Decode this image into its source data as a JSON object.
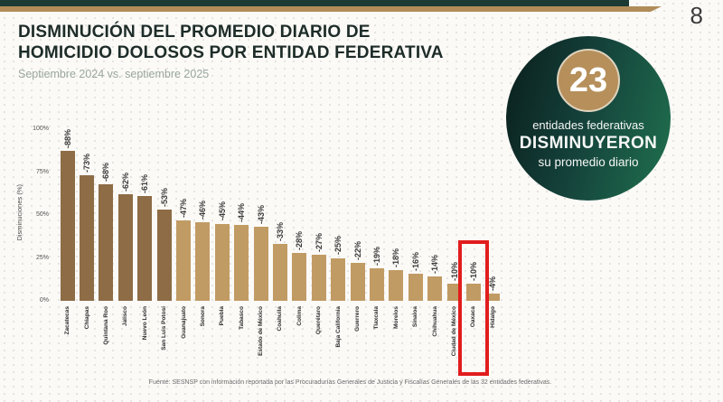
{
  "page": {
    "number": "8",
    "footer": "Fuente: SESNSP con información reportada por las Procuradurías Generales de Justicia y Fiscalías Generales de las 32 entidades federativas."
  },
  "header": {
    "title": "DISMINUCIÓN DEL PROMEDIO DIARIO DE HOMICIDIO DOLOSOS POR ENTIDAD FEDERATIVA",
    "subtitle": "Septiembre 2024 vs. septiembre 2025"
  },
  "badge": {
    "value": "23",
    "line1": "entidades federativas",
    "line2": "DISMINUYERON",
    "line3": "su promedio diario",
    "circle_gradient_start": "#0a1e1b",
    "circle_gradient_end": "#20714f",
    "inner_circle_color": "#b68f5b"
  },
  "theme": {
    "top_bar_teal": "#1b3a33",
    "top_bar_tan": "#b18c59",
    "highlight_red": "#e11d1d"
  },
  "chart_data": {
    "type": "bar",
    "title": "",
    "xlabel": "",
    "ylabel": "Disminuciones (%)",
    "ylim": [
      0,
      100
    ],
    "yticks": [
      "100%",
      "75%",
      "50%",
      "25%",
      "0%"
    ],
    "grid": false,
    "legend_position": "none",
    "categories": [
      "Zacatecas",
      "Chiapas",
      "Quintana Roo",
      "Jalisco",
      "Nuevo León",
      "San Luis Potosí",
      "Guanajuato",
      "Sonora",
      "Puebla",
      "Tabasco",
      "Estado de México",
      "Coahuila",
      "Colima",
      "Querétaro",
      "Baja California",
      "Guerrero",
      "Tlaxcala",
      "Morelos",
      "Sinaloa",
      "Chihuahua",
      "Ciudad de México",
      "Oaxaca",
      "Hidalgo"
    ],
    "values": [
      -88,
      -73,
      -68,
      -62,
      -61,
      -53,
      -47,
      -46,
      -45,
      -44,
      -43,
      -33,
      -28,
      -27,
      -25,
      -22,
      -19,
      -18,
      -16,
      -14,
      -10,
      -10,
      -4
    ],
    "bar_color_dark": "#8d6c46",
    "bar_color_light": "#c19b64",
    "dark_count": 6,
    "highlight_index": 21,
    "highlight_color": "#e11d1d"
  }
}
